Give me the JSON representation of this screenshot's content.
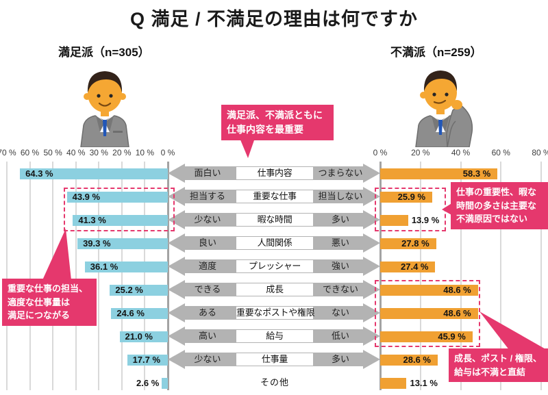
{
  "title": "Q 満足 / 不満足の理由は何ですか",
  "groups": {
    "left": {
      "label": "満足派（n=305）",
      "illustration": "satisfied-businessman"
    },
    "right": {
      "label": "不満派（n=259）",
      "illustration": "dissatisfied-businessman"
    }
  },
  "annotations": {
    "top": "満足派、不満派ともに\n仕事内容を最重要",
    "right_top": "仕事の重要性、暇な\n時間の多さは主要な\n不満原因ではない",
    "left": "重要な仕事の担当、\n適度な仕事量は\n満足につながる",
    "bottom_right": "成長、ポスト / 権限、\n給与は不満と直結"
  },
  "chart_data": {
    "type": "bar",
    "layout": "diverging-horizontal",
    "left_axis": {
      "title": "満足派",
      "n": 305,
      "max": 70,
      "ticks": [
        "70 %",
        "60 %",
        "50 %",
        "40 %",
        "30 %",
        "20 %",
        "10 %",
        "0 %"
      ]
    },
    "right_axis": {
      "title": "不満派",
      "n": 259,
      "max": 80,
      "ticks": [
        "0 %",
        "20 %",
        "40 %",
        "60 %",
        "80 %"
      ]
    },
    "series": [
      {
        "name": "満足派（n=305）",
        "values": [
          64.3,
          43.9,
          41.3,
          39.3,
          36.1,
          25.2,
          24.6,
          21.0,
          17.7,
          2.6
        ]
      },
      {
        "name": "不満派（n=259）",
        "values": [
          58.3,
          25.9,
          13.9,
          27.8,
          27.4,
          48.6,
          48.6,
          45.9,
          28.6,
          13.1
        ]
      }
    ],
    "rows": [
      {
        "left_label": "面白い",
        "category": "仕事内容",
        "right_label": "つまらない",
        "left_value": 64.3,
        "right_value": 58.3
      },
      {
        "left_label": "担当する",
        "category": "重要な仕事",
        "right_label": "担当しない",
        "left_value": 43.9,
        "right_value": 25.9
      },
      {
        "left_label": "少ない",
        "category": "暇な時間",
        "right_label": "多い",
        "left_value": 41.3,
        "right_value": 13.9
      },
      {
        "left_label": "良い",
        "category": "人間関係",
        "right_label": "悪い",
        "left_value": 39.3,
        "right_value": 27.8
      },
      {
        "left_label": "適度",
        "category": "プレッシャー",
        "right_label": "強い",
        "left_value": 36.1,
        "right_value": 27.4
      },
      {
        "left_label": "できる",
        "category": "成長",
        "right_label": "できない",
        "left_value": 25.2,
        "right_value": 48.6
      },
      {
        "left_label": "ある",
        "category": "重要なポストや権限",
        "right_label": "ない",
        "left_value": 24.6,
        "right_value": 48.6
      },
      {
        "left_label": "高い",
        "category": "給与",
        "right_label": "低い",
        "left_value": 21.0,
        "right_value": 45.9
      },
      {
        "left_label": "少ない",
        "category": "仕事量",
        "right_label": "多い",
        "left_value": 17.7,
        "right_value": 28.6
      },
      {
        "left_label": "",
        "category": "その他",
        "right_label": "",
        "left_value": 2.6,
        "right_value": 13.1
      }
    ]
  },
  "colors": {
    "accent_pink": "#E5386D",
    "satisfied_bar": "#8CD0E0",
    "dissatisfied_bar": "#F0A032",
    "arrow_gray": "#B3B3B3",
    "grid_line": "#D9D9D9",
    "zero_line": "#A3A3A3"
  }
}
